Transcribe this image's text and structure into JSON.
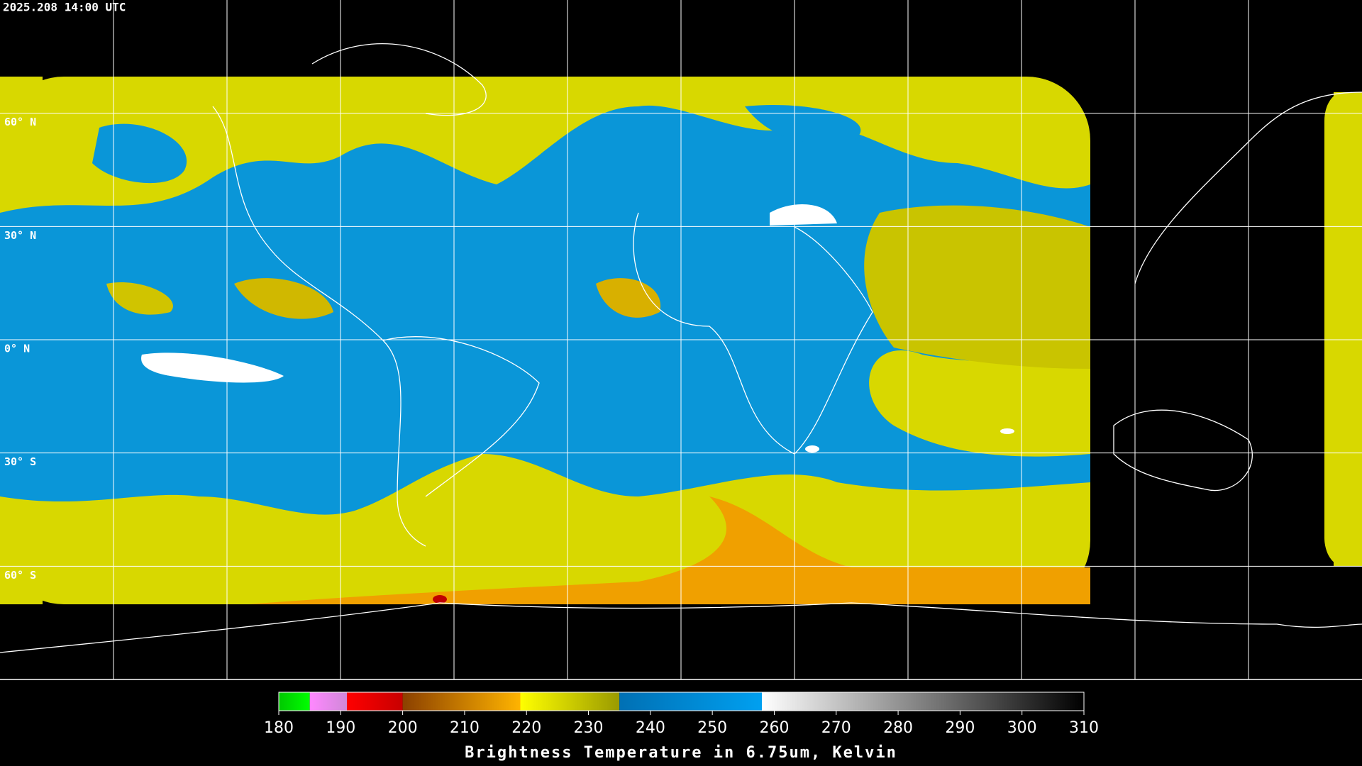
{
  "header": {
    "title": "2025.208 14:00 UTC"
  },
  "map": {
    "lat_ticks": [
      {
        "value": 60,
        "label": "60° N"
      },
      {
        "value": 30,
        "label": "30° N"
      },
      {
        "value": 0,
        "label": "0° N"
      },
      {
        "value": -30,
        "label": "30° S"
      },
      {
        "value": -60,
        "label": "60° S"
      }
    ]
  },
  "colorbar": {
    "label": "Brightness Temperature in 6.75um, Kelvin",
    "range": [
      180,
      310
    ],
    "ticks": [
      180,
      190,
      200,
      210,
      220,
      230,
      240,
      250,
      260,
      270,
      280,
      290,
      300,
      310
    ],
    "segments": [
      {
        "from": 180,
        "to": 185,
        "colors": [
          "#00c800",
          "#00ff00"
        ]
      },
      {
        "from": 185,
        "to": 191,
        "colors": [
          "#ff88ff",
          "#d088d8"
        ]
      },
      {
        "from": 191,
        "to": 200,
        "colors": [
          "#ff0000",
          "#c80000"
        ]
      },
      {
        "from": 200,
        "to": 219,
        "colors": [
          "#8b4000",
          "#ffb400"
        ]
      },
      {
        "from": 219,
        "to": 235,
        "colors": [
          "#ffff00",
          "#9a9a00"
        ]
      },
      {
        "from": 235,
        "to": 258,
        "colors": [
          "#0070b4",
          "#00a0f0"
        ]
      },
      {
        "from": 258,
        "to": 310,
        "colors": [
          "#ffffff",
          "#000000"
        ]
      }
    ]
  }
}
